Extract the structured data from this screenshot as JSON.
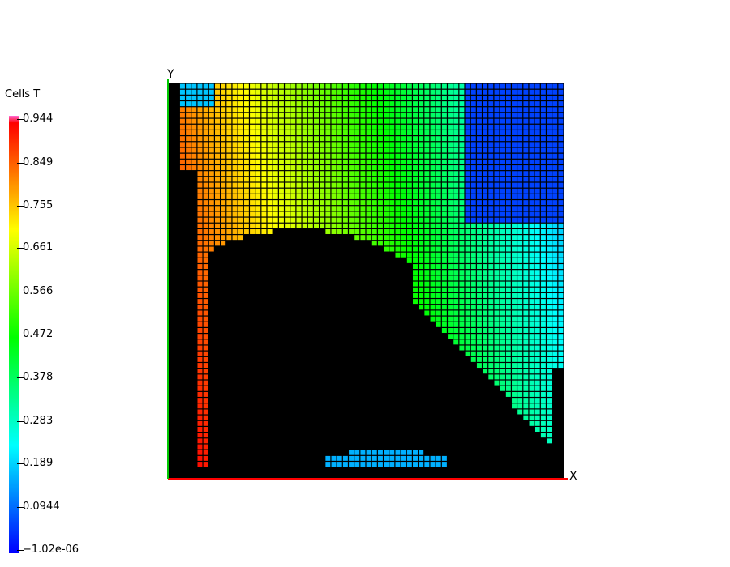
{
  "chart_data": {
    "type": "heatmap",
    "title": "",
    "legend_title": "Cells T",
    "xlabel": "X",
    "ylabel": "Y",
    "colorbar": {
      "min": -1.02e-06,
      "max": 0.944,
      "tick_labels": [
        "0.944",
        "0.849",
        "0.755",
        "0.661",
        "0.566",
        "0.472",
        "0.378",
        "0.283",
        "0.189",
        "0.0944",
        "−1.02e-06"
      ],
      "tick_values": [
        0.944,
        0.849,
        0.755,
        0.661,
        0.566,
        0.472,
        0.378,
        0.283,
        0.189,
        0.0944,
        -1.02e-06
      ],
      "colormap": [
        "#0000ff",
        "#00ffff",
        "#00ff00",
        "#ffff00",
        "#ff0000",
        "#ff66cc"
      ]
    },
    "grid": {
      "nx": 68,
      "ny": 68
    },
    "field": {
      "description": "cell temperature, high at top-left, decreasing toward right and bottom",
      "samples": [
        {
          "region": "upper-left wall",
          "value": 0.85
        },
        {
          "region": "top-center",
          "value": 0.55
        },
        {
          "region": "right side",
          "value": 0.2
        },
        {
          "region": "top-right corner",
          "value": 0.08
        }
      ]
    },
    "axis_colors": {
      "x": "#ff0000",
      "y": "#00c800"
    },
    "background": "#ffffff",
    "empty_cell_color": "#000000"
  }
}
